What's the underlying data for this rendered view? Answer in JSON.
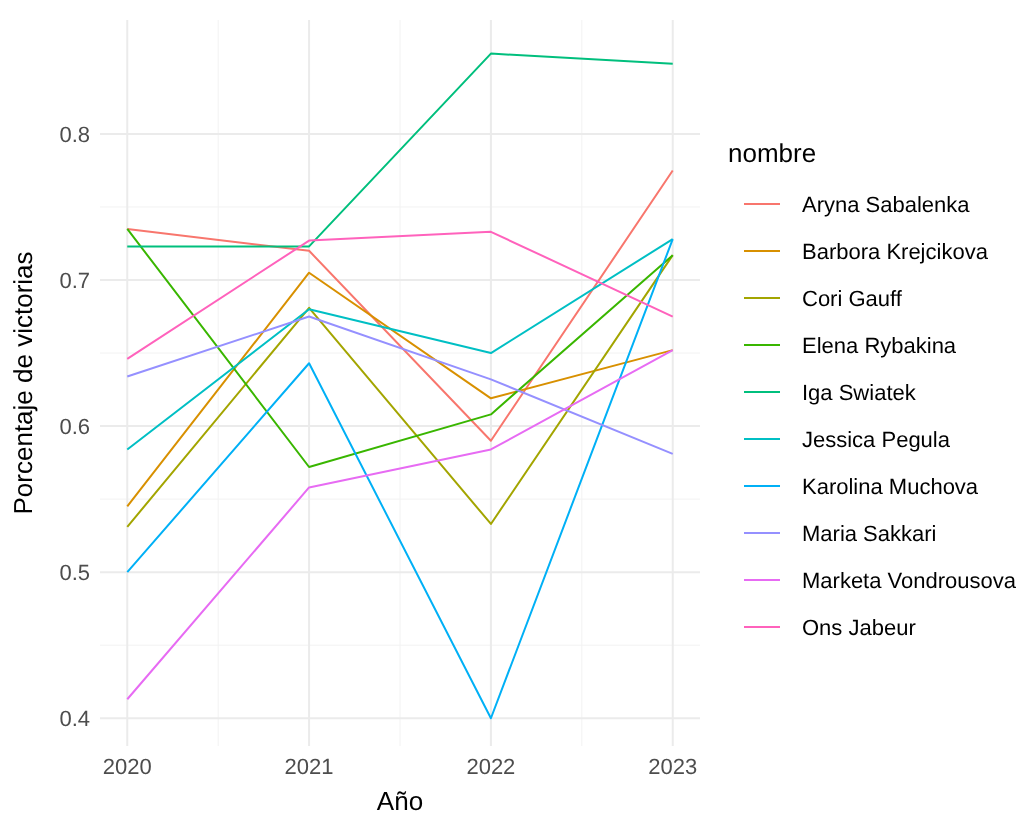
{
  "chart_data": {
    "type": "line",
    "xlabel": "Año",
    "ylabel": "Porcentaje de victorias",
    "legend_title": "nombre",
    "x": [
      2020,
      2021,
      2022,
      2023
    ],
    "xlim": [
      2019.85,
      2023.15
    ],
    "xticks": [
      2020,
      2021,
      2022,
      2023
    ],
    "ylim": [
      0.381,
      0.878
    ],
    "yticks": [
      0.4,
      0.5,
      0.6,
      0.7,
      0.8
    ],
    "grid": true,
    "legend": "right",
    "series": [
      {
        "name": "Aryna Sabalenka",
        "color": "#F8766D",
        "values": [
          0.735,
          0.72,
          0.59,
          0.775
        ]
      },
      {
        "name": "Barbora Krejcikova",
        "color": "#D89000",
        "values": [
          0.545,
          0.705,
          0.619,
          0.652
        ]
      },
      {
        "name": "Cori Gauff",
        "color": "#A3A500",
        "values": [
          0.531,
          0.681,
          0.533,
          0.717
        ]
      },
      {
        "name": "Elena Rybakina",
        "color": "#39B600",
        "values": [
          0.735,
          0.572,
          0.608,
          0.717
        ]
      },
      {
        "name": "Iga Swiatek",
        "color": "#00BF7D",
        "values": [
          0.723,
          0.723,
          0.855,
          0.848
        ]
      },
      {
        "name": "Jessica Pegula",
        "color": "#00BFC4",
        "values": [
          0.584,
          0.68,
          0.65,
          0.728
        ]
      },
      {
        "name": "Karolina Muchova",
        "color": "#00B0F6",
        "values": [
          0.5,
          0.643,
          0.4,
          0.728
        ]
      },
      {
        "name": "Maria Sakkari",
        "color": "#9590FF",
        "values": [
          0.634,
          0.675,
          0.632,
          0.581
        ]
      },
      {
        "name": "Marketa Vondrousova",
        "color": "#E76BF3",
        "values": [
          0.413,
          0.558,
          0.584,
          0.652
        ]
      },
      {
        "name": "Ons Jabeur",
        "color": "#FF62BC",
        "values": [
          0.646,
          0.727,
          0.733,
          0.675
        ]
      }
    ]
  }
}
